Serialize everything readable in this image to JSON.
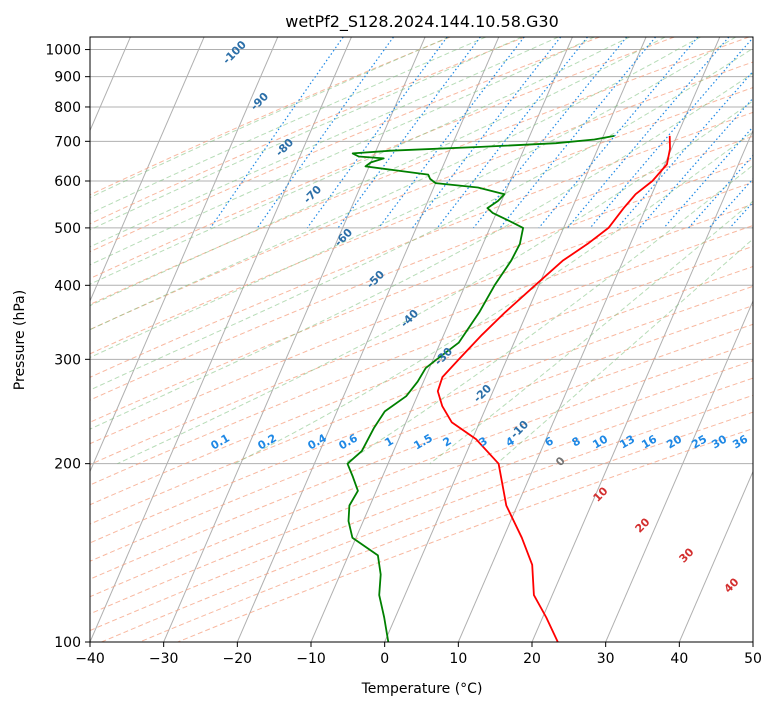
{
  "chart_data": {
    "type": "line",
    "subtype": "skew-T log-P diagram",
    "title": "wetPf2_S128.2024.144.10.58.G30",
    "xlabel": "Temperature (°C)",
    "ylabel": "Pressure (hPa)",
    "xlim": [
      -40,
      50
    ],
    "ylim": [
      1050,
      100
    ],
    "y_scale": "log",
    "grid": true,
    "x_ticks": [
      -40,
      -30,
      -20,
      -10,
      0,
      10,
      20,
      30,
      40,
      50
    ],
    "y_ticks": [
      1000,
      900,
      800,
      700,
      600,
      500,
      400,
      300,
      200,
      100
    ],
    "dry_adiabat_labels": [
      "-100",
      "-90",
      "-80",
      "-70",
      "-60",
      "-50",
      "-40",
      "-30",
      "-20",
      "-10"
    ],
    "mixing_ratio_labels": [
      "0.1",
      "0.2",
      "0.4",
      "0.6",
      "1",
      "1.5",
      "2",
      "3",
      "4",
      "6",
      "8",
      "10",
      "13",
      "16",
      "20",
      "25",
      "30",
      "36"
    ],
    "moist_adiabat_labels": [
      "0",
      "10",
      "20",
      "30",
      "40"
    ],
    "series": [
      {
        "color": "#ff0000",
        "points": [
          {
            "p": 715,
            "t": 9
          },
          {
            "p": 680,
            "t": 9.8
          },
          {
            "p": 640,
            "t": 10.3
          },
          {
            "p": 600,
            "t": 9.3
          },
          {
            "p": 570,
            "t": 7.8
          },
          {
            "p": 540,
            "t": 7.0
          },
          {
            "p": 500,
            "t": 6.1
          },
          {
            "p": 470,
            "t": 4.2
          },
          {
            "p": 440,
            "t": 1.8
          },
          {
            "p": 400,
            "t": -0.5
          },
          {
            "p": 360,
            "t": -3.0
          },
          {
            "p": 330,
            "t": -4.8
          },
          {
            "p": 300,
            "t": -6.5
          },
          {
            "p": 280,
            "t": -7.7
          },
          {
            "p": 265,
            "t": -7.5
          },
          {
            "p": 250,
            "t": -6.0
          },
          {
            "p": 235,
            "t": -3.8
          },
          {
            "p": 220,
            "t": 0.5
          },
          {
            "p": 200,
            "t": 5.0
          },
          {
            "p": 170,
            "t": 8.5
          },
          {
            "p": 150,
            "t": 12.5
          },
          {
            "p": 135,
            "t": 15.5
          },
          {
            "p": 120,
            "t": 17.5
          },
          {
            "p": 110,
            "t": 20.5
          },
          {
            "p": 100,
            "t": 23.5
          }
        ]
      },
      {
        "color": "#008000",
        "points": [
          {
            "p": 715,
            "t": 1.5
          },
          {
            "p": 705,
            "t": -1
          },
          {
            "p": 695,
            "t": -6
          },
          {
            "p": 685,
            "t": -16
          },
          {
            "p": 675,
            "t": -28
          },
          {
            "p": 668,
            "t": -33
          },
          {
            "p": 660,
            "t": -32
          },
          {
            "p": 655,
            "t": -28.5
          },
          {
            "p": 645,
            "t": -30
          },
          {
            "p": 635,
            "t": -30.5
          },
          {
            "p": 625,
            "t": -26
          },
          {
            "p": 615,
            "t": -21.5
          },
          {
            "p": 605,
            "t": -21
          },
          {
            "p": 595,
            "t": -20
          },
          {
            "p": 585,
            "t": -14
          },
          {
            "p": 570,
            "t": -10
          },
          {
            "p": 555,
            "t": -10.5
          },
          {
            "p": 540,
            "t": -11.5
          },
          {
            "p": 530,
            "t": -10.5
          },
          {
            "p": 515,
            "t": -8
          },
          {
            "p": 500,
            "t": -5.5
          },
          {
            "p": 470,
            "t": -5
          },
          {
            "p": 440,
            "t": -5.2
          },
          {
            "p": 400,
            "t": -6
          },
          {
            "p": 360,
            "t": -6.5
          },
          {
            "p": 320,
            "t": -7.5
          },
          {
            "p": 300,
            "t": -9.5
          },
          {
            "p": 290,
            "t": -10.5
          },
          {
            "p": 275,
            "t": -10.8
          },
          {
            "p": 260,
            "t": -11.5
          },
          {
            "p": 245,
            "t": -13.5
          },
          {
            "p": 230,
            "t": -14
          },
          {
            "p": 210,
            "t": -14.3
          },
          {
            "p": 200,
            "t": -15.5
          },
          {
            "p": 190,
            "t": -14
          },
          {
            "p": 180,
            "t": -12.5
          },
          {
            "p": 170,
            "t": -12.8
          },
          {
            "p": 160,
            "t": -12
          },
          {
            "p": 150,
            "t": -10.5
          },
          {
            "p": 140,
            "t": -6
          },
          {
            "p": 130,
            "t": -4.5
          },
          {
            "p": 120,
            "t": -3.5
          },
          {
            "p": 110,
            "t": -1.5
          },
          {
            "p": 100,
            "t": 0.5
          }
        ]
      }
    ]
  }
}
